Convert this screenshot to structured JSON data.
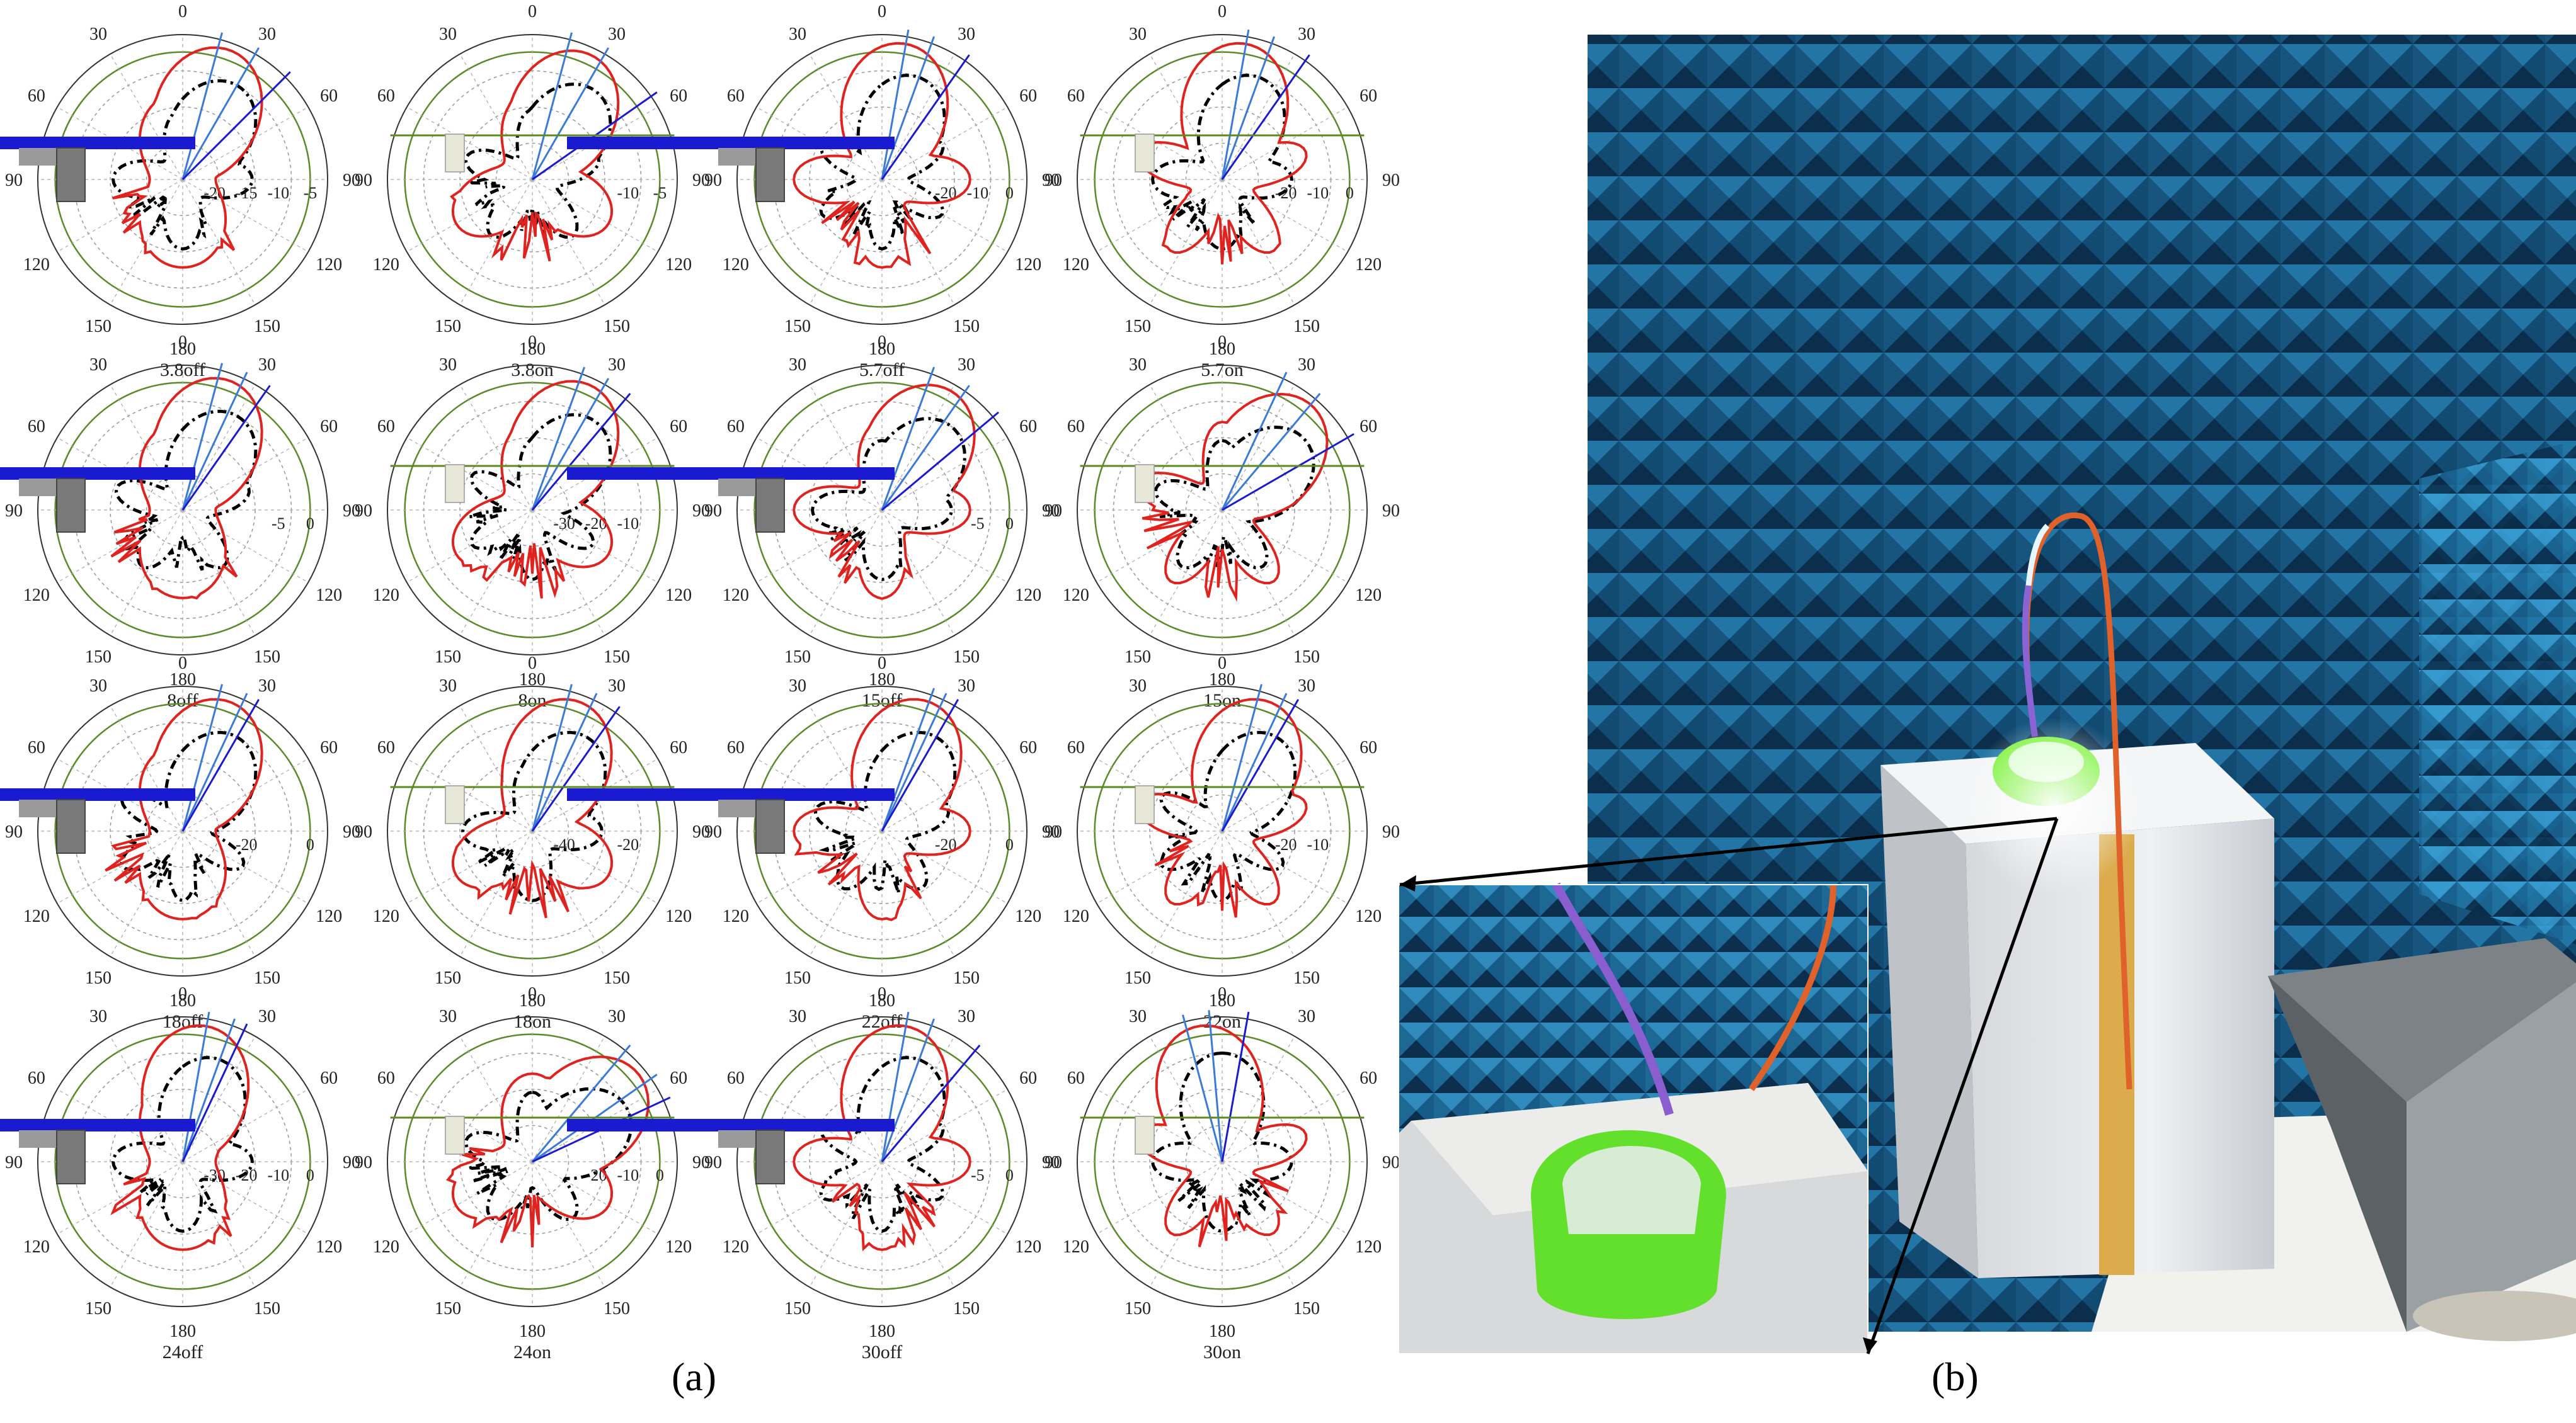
{
  "panel_labels": {
    "a": "(a)",
    "b": "(b)"
  },
  "colors": {
    "pattern_red": "#e0231f",
    "pattern_dashed": "#000000",
    "ring_green": "#5a8a2a",
    "ground_blue": "#1a1ad0",
    "beam_blue": "#3c7ad8",
    "absorber_blue": "#2a7fb0",
    "lens_green": "#7cf23a",
    "cable_orange": "#e0612a"
  },
  "chart_data": [
    {
      "type": "polar",
      "caption": "3.8off",
      "ring_labels": [
        "-20",
        "-15",
        "-10",
        "-5"
      ],
      "angle_labels": [
        "0",
        "30",
        "60",
        "90",
        "120",
        "150",
        "180",
        "150",
        "120",
        "90",
        "60",
        "30"
      ],
      "beam_deg": [
        15,
        30,
        45
      ],
      "ground_plane": true,
      "red_peak_deg": 20
    },
    {
      "type": "polar",
      "caption": "3.8on",
      "ring_labels": [
        "",
        "",
        "-10",
        "-5"
      ],
      "angle_labels": [
        "0",
        "30",
        "60",
        "90",
        "120",
        "150",
        "180",
        "150",
        "120",
        "90",
        "60",
        "30"
      ],
      "beam_deg": [
        15,
        30,
        55
      ],
      "ground_plane": false,
      "red_peak_deg": 25
    },
    {
      "type": "polar",
      "caption": "5.7off",
      "ring_labels": [
        "",
        "-20",
        "-10",
        "0"
      ],
      "angle_labels": [
        "0",
        "30",
        "60",
        "90",
        "120",
        "150",
        "180",
        "150",
        "120",
        "90",
        "60",
        "30"
      ],
      "beam_deg": [
        10,
        20,
        35
      ],
      "ground_plane": true,
      "red_peak_deg": 10
    },
    {
      "type": "polar",
      "caption": "5.7on",
      "ring_labels": [
        "",
        "-20",
        "-10",
        "0"
      ],
      "angle_labels": [
        "0",
        "30",
        "60",
        "90",
        "120",
        "150",
        "180",
        "150",
        "120",
        "90",
        "60",
        "30"
      ],
      "beam_deg": [
        10,
        20,
        35
      ],
      "ground_plane": false,
      "red_peak_deg": 10
    },
    {
      "type": "polar",
      "caption": "8off",
      "ring_labels": [
        "",
        "",
        "-5",
        "0"
      ],
      "angle_labels": [
        "0",
        "30",
        "60",
        "90",
        "120",
        "150",
        "180",
        "150",
        "120",
        "90",
        "60",
        "30"
      ],
      "beam_deg": [
        15,
        25,
        35
      ],
      "ground_plane": true,
      "red_peak_deg": 20
    },
    {
      "type": "polar",
      "caption": "8on",
      "ring_labels": [
        "-30",
        "-20",
        "-10",
        ""
      ],
      "angle_labels": [
        "0",
        "30",
        "60",
        "90",
        "120",
        "150",
        "180",
        "150",
        "120",
        "90",
        "60",
        "30"
      ],
      "beam_deg": [
        20,
        30,
        40
      ],
      "ground_plane": false,
      "red_peak_deg": 25
    },
    {
      "type": "polar",
      "caption": "15off",
      "ring_labels": [
        "",
        "",
        "-5",
        "0"
      ],
      "angle_labels": [
        "0",
        "30",
        "60",
        "90",
        "120",
        "150",
        "180",
        "150",
        "120",
        "90",
        "60",
        "30"
      ],
      "beam_deg": [
        20,
        35,
        50
      ],
      "ground_plane": true,
      "red_peak_deg": 30
    },
    {
      "type": "polar",
      "caption": "15on",
      "ring_labels": [
        "",
        "",
        "",
        ""
      ],
      "angle_labels": [
        "0",
        "30",
        "60",
        "90",
        "120",
        "150",
        "180",
        "150",
        "120",
        "90",
        "60",
        "30"
      ],
      "beam_deg": [
        25,
        40,
        60
      ],
      "ground_plane": false,
      "red_peak_deg": 40
    },
    {
      "type": "polar",
      "caption": "18off",
      "ring_labels": [
        "",
        "-20",
        "",
        "0"
      ],
      "angle_labels": [
        "0",
        "30",
        "60",
        "90",
        "120",
        "150",
        "180",
        "150",
        "120",
        "90",
        "60",
        "30"
      ],
      "beam_deg": [
        15,
        25,
        30
      ],
      "ground_plane": true,
      "red_peak_deg": 20
    },
    {
      "type": "polar",
      "caption": "18on",
      "ring_labels": [
        "-40",
        "",
        "-20",
        ""
      ],
      "angle_labels": [
        "0",
        "30",
        "60",
        "90",
        "120",
        "150",
        "180",
        "150",
        "120",
        "90",
        "60",
        "30"
      ],
      "beam_deg": [
        15,
        25,
        35
      ],
      "ground_plane": false,
      "red_peak_deg": 20
    },
    {
      "type": "polar",
      "caption": "22off",
      "ring_labels": [
        "",
        "-20",
        "",
        "0"
      ],
      "angle_labels": [
        "0",
        "30",
        "60",
        "90",
        "120",
        "150",
        "180",
        "150",
        "120",
        "90",
        "60",
        "30"
      ],
      "beam_deg": [
        20,
        25,
        30
      ],
      "ground_plane": true,
      "red_peak_deg": 20
    },
    {
      "type": "polar",
      "caption": "22on",
      "ring_labels": [
        "",
        "-20",
        "-10",
        ""
      ],
      "angle_labels": [
        "0",
        "30",
        "60",
        "90",
        "120",
        "150",
        "180",
        "150",
        "120",
        "90",
        "60",
        "30"
      ],
      "beam_deg": [
        15,
        25,
        30
      ],
      "ground_plane": false,
      "red_peak_deg": 20
    },
    {
      "type": "polar",
      "caption": "24off",
      "ring_labels": [
        "-30",
        "-20",
        "-10",
        "0"
      ],
      "angle_labels": [
        "0",
        "30",
        "60",
        "90",
        "120",
        "150",
        "180",
        "150",
        "120",
        "90",
        "60",
        "30"
      ],
      "beam_deg": [
        10,
        20,
        25
      ],
      "ground_plane": true,
      "red_peak_deg": 10
    },
    {
      "type": "polar",
      "caption": "24on",
      "ring_labels": [
        "",
        "-20",
        "-10",
        "0"
      ],
      "angle_labels": [
        "0",
        "30",
        "60",
        "90",
        "120",
        "150",
        "180",
        "150",
        "120",
        "90",
        "60",
        "30"
      ],
      "beam_deg": [
        40,
        55,
        65
      ],
      "ground_plane": false,
      "red_peak_deg": 50
    },
    {
      "type": "polar",
      "caption": "30off",
      "ring_labels": [
        "",
        "",
        "-5",
        "0"
      ],
      "angle_labels": [
        "0",
        "30",
        "60",
        "90",
        "120",
        "150",
        "180",
        "150",
        "120",
        "90",
        "60",
        "30"
      ],
      "beam_deg": [
        10,
        20,
        40
      ],
      "ground_plane": true,
      "red_peak_deg": 10
    },
    {
      "type": "polar",
      "caption": "30on",
      "ring_labels": [
        "",
        "",
        "",
        ""
      ],
      "angle_labels": [
        "0",
        "30",
        "60",
        "90",
        "120",
        "150",
        "180",
        "150",
        "120",
        "90",
        "60",
        "30"
      ],
      "beam_deg": [
        -15,
        -5,
        10
      ],
      "ground_plane": false,
      "red_peak_deg": -10
    }
  ]
}
